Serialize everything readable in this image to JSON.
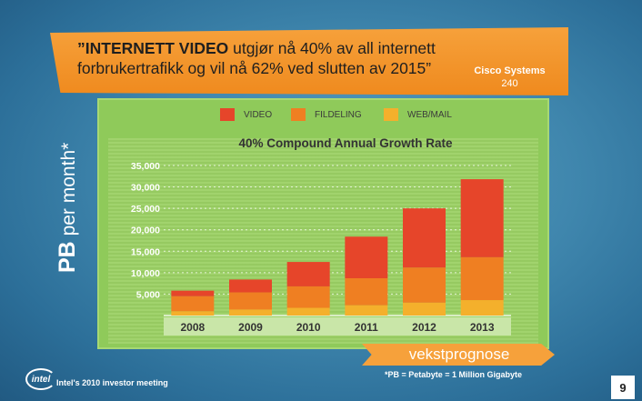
{
  "banner": {
    "quote_bold": "”INTERNETT VIDEO",
    "quote_rest": " utgjør nå 40% av all internett forbrukertrafikk og vil nå 62% ved slutten av 2015”",
    "source": "Cisco Systems",
    "source_number": "240"
  },
  "chart_data": {
    "type": "bar",
    "stacked": true,
    "title": "40% Compound Annual Growth Rate",
    "ylabel_bold": "PB",
    "ylabel_rest": " per month*",
    "categories": [
      "2008",
      "2009",
      "2010",
      "2011",
      "2012",
      "2013"
    ],
    "series": [
      {
        "name": "WEB/MAIL",
        "color": "#f4b02c",
        "values": [
          1000,
          1400,
          1800,
          2400,
          3000,
          3600
        ]
      },
      {
        "name": "FILDELING",
        "color": "#ef7f22",
        "values": [
          3500,
          4000,
          5000,
          6300,
          8200,
          10000
        ]
      },
      {
        "name": "VIDEO",
        "color": "#e6452a",
        "values": [
          1300,
          3000,
          5700,
          9700,
          13800,
          18200
        ]
      }
    ],
    "ylim": [
      0,
      35000
    ],
    "yticks": [
      5000,
      10000,
      15000,
      20000,
      25000,
      30000,
      35000
    ],
    "ytick_labels": [
      "5,000",
      "10,000",
      "15,000",
      "20,000",
      "25,000",
      "30,000",
      "35,000"
    ],
    "grid": true
  },
  "legend": [
    {
      "label": "VIDEO",
      "color": "#e6452a"
    },
    {
      "label": "FILDELING",
      "color": "#ef7f22"
    },
    {
      "label": "WEB/MAIL",
      "color": "#f4b02c"
    }
  ],
  "arrow_label": "vekstprognose",
  "footnote": "*PB = Petabyte = 1 Million Gigabyte",
  "footer": {
    "logo_text": "intel",
    "meeting": "Intel's 2010 investor meeting",
    "page_number": "9"
  }
}
